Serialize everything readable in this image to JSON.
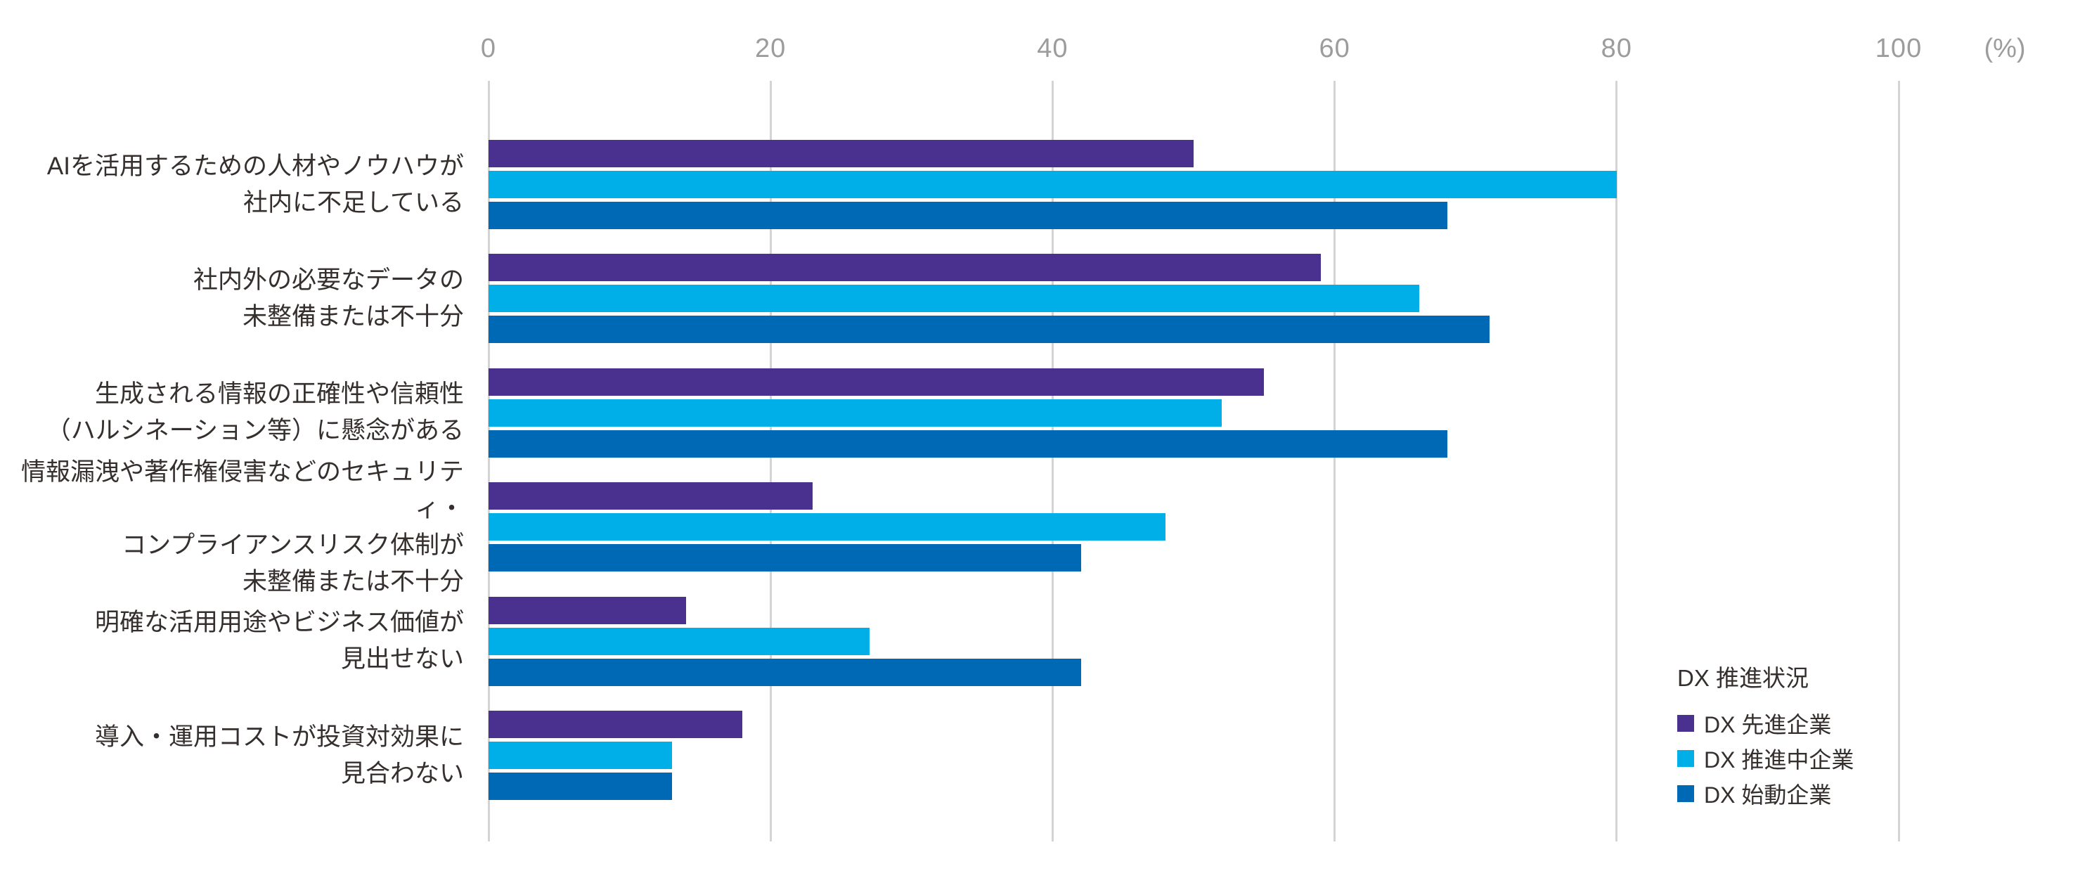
{
  "chart_data": {
    "type": "bar",
    "orientation": "horizontal",
    "title": "",
    "unit_label": "(%)",
    "x_axis": {
      "ticks": [
        0,
        20,
        40,
        60,
        80,
        100
      ],
      "range": [
        0,
        100
      ],
      "grid": true,
      "tick_color": "#9c9c9c",
      "grid_color": "#d4d4d4"
    },
    "categories": [
      [
        "AIを活用するための人材やノウハウが",
        "社内に不足している"
      ],
      [
        "社内外の必要なデータの",
        "未整備または不十分"
      ],
      [
        "生成される情報の正確性や信頼性",
        "（ハルシネーション等）に懸念がある"
      ],
      [
        "情報漏洩や著作権侵害などのセキュリティ・",
        "コンプライアンスリスク体制が",
        "未整備または不十分"
      ],
      [
        "明確な活用用途やビジネス価値が",
        "見出せない"
      ],
      [
        "導入・運用コストが投資対効果に",
        "見合わない"
      ]
    ],
    "series": [
      {
        "name": "DX 先進企業",
        "color": "#4a3190",
        "values": [
          50,
          59,
          55,
          23,
          14,
          18
        ]
      },
      {
        "name": "DX 推進中企業",
        "color": "#00aee8",
        "values": [
          80,
          66,
          52,
          48,
          27,
          13
        ]
      },
      {
        "name": "DX 始動企業",
        "color": "#0069b5",
        "values": [
          68,
          71,
          68,
          42,
          42,
          13
        ]
      }
    ],
    "legend": {
      "title": "DX 推進状況",
      "position": "right-bottom",
      "items": [
        {
          "label": "DX 先進企業",
          "color": "#4a3190"
        },
        {
          "label": "DX 推進中企業",
          "color": "#00aee8"
        },
        {
          "label": "DX 始動企業",
          "color": "#0069b5"
        }
      ]
    },
    "colors": {
      "background": "#ffffff",
      "category_text": "#352f2e",
      "tick_text": "#9c9c9c",
      "gridline": "#d4d4d4"
    }
  }
}
